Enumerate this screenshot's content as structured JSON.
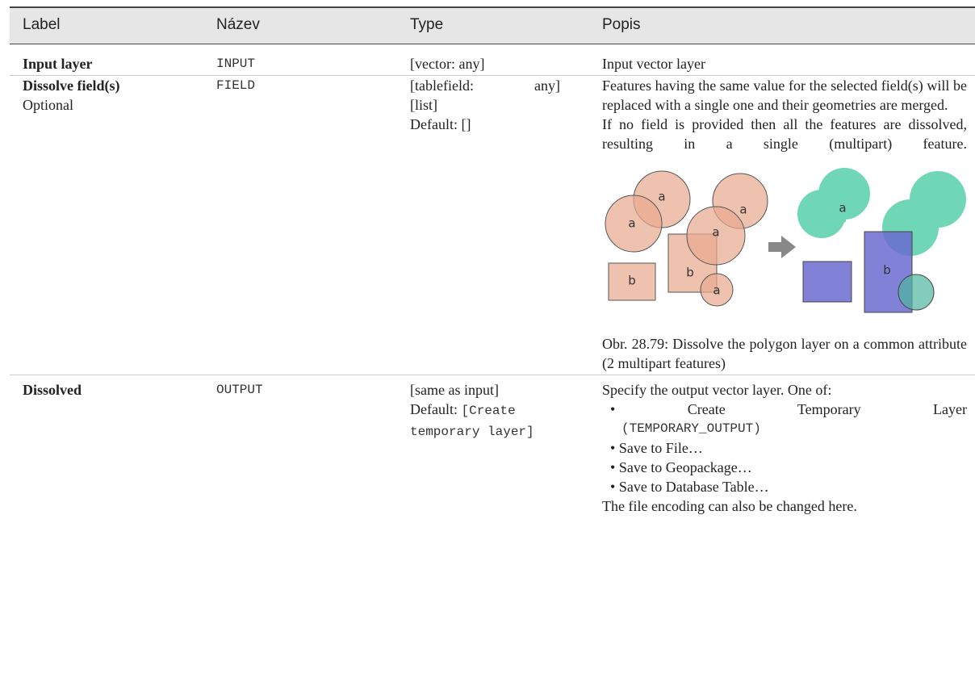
{
  "table": {
    "header": [
      "Label",
      "Název",
      "Type",
      "Popis"
    ],
    "rows": [
      {
        "label": "Input layer",
        "name": "INPUT",
        "type": [
          "[vector: any]"
        ],
        "description": [
          "Input vector layer"
        ]
      },
      {
        "label": "Dissolve field(s)",
        "optional": "Optional",
        "name": "FIELD",
        "type": [
          "[tablefield: any]",
          "[list]",
          "Default: []"
        ],
        "description": [
          "Features having the same value for the selected field(s) will be replaced with a single one and their geometries are merged.",
          "If no field is provided then all the features are dissolved, resulting in a single (multipart) feature."
        ],
        "figure": {
          "labels": [
            "a",
            "a",
            "a",
            "a",
            "b",
            "b",
            "a",
            "a",
            "b"
          ],
          "caption": "Obr. 28.79: Dissolve the polygon layer on a common attribute (2 multipart features)"
        }
      },
      {
        "label": "Dissolved",
        "name": "OUTPUT",
        "type": [
          "[same as input]",
          "Default: ",
          "[Create temporary layer]"
        ],
        "description": [
          "Specify the output vector layer. One of:",
          "The file encoding can also be changed here."
        ],
        "options": [
          "Create Temporary Layer",
          "(TEMPORARY_OUTPUT)",
          "Save to File…",
          "Save to Geopackage…",
          "Save to Database Table…"
        ]
      }
    ]
  }
}
